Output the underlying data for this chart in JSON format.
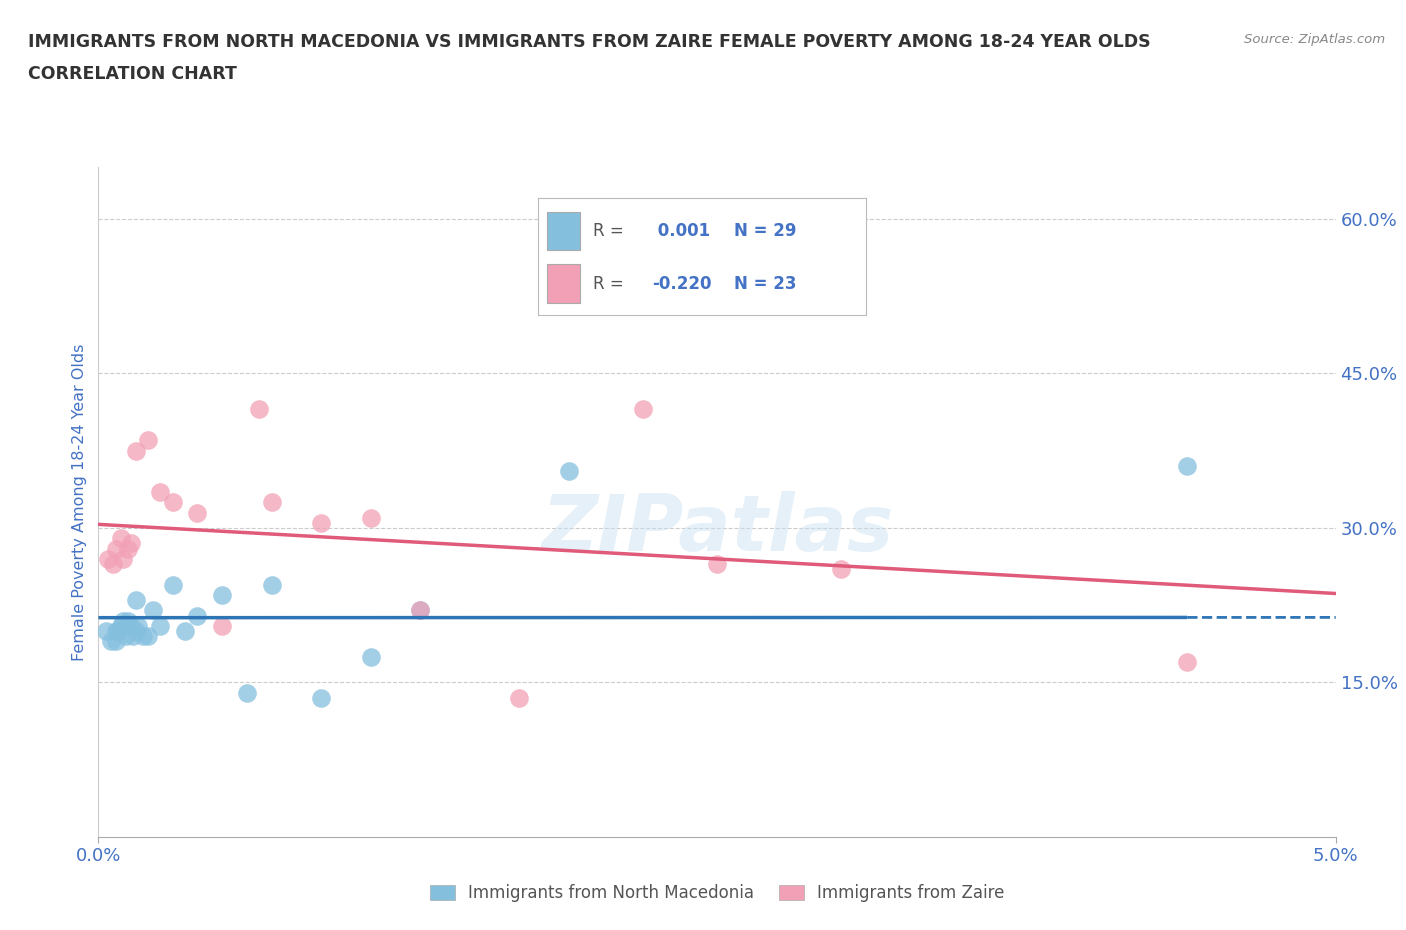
{
  "title_line1": "IMMIGRANTS FROM NORTH MACEDONIA VS IMMIGRANTS FROM ZAIRE FEMALE POVERTY AMONG 18-24 YEAR OLDS",
  "title_line2": "CORRELATION CHART",
  "source": "Source: ZipAtlas.com",
  "ylabel": "Female Poverty Among 18-24 Year Olds",
  "xlim": [
    0.0,
    0.05
  ],
  "ylim": [
    0.0,
    0.65
  ],
  "yticks": [
    0.15,
    0.3,
    0.45,
    0.6
  ],
  "ytick_labels": [
    "15.0%",
    "30.0%",
    "45.0%",
    "60.0%"
  ],
  "xtick_labels": [
    "0.0%",
    "5.0%"
  ],
  "color_blue": "#85bfde",
  "color_pink": "#f2a0b5",
  "color_blue_line": "#2e75b6",
  "color_pink_line": "#e05a7a",
  "color_label": "#4472c4",
  "legend_R1": " 0.001",
  "legend_N1": "29",
  "legend_R2": "-0.220",
  "legend_N2": "23",
  "watermark": "ZIPatlas",
  "nm_x": [
    0.0003,
    0.0005,
    0.0007,
    0.0007,
    0.0008,
    0.0009,
    0.001,
    0.0011,
    0.0012,
    0.0013,
    0.0014,
    0.0015,
    0.0015,
    0.0016,
    0.0018,
    0.002,
    0.0022,
    0.0025,
    0.003,
    0.0035,
    0.004,
    0.005,
    0.006,
    0.007,
    0.009,
    0.011,
    0.013,
    0.019,
    0.044
  ],
  "nm_y": [
    0.2,
    0.19,
    0.2,
    0.19,
    0.2,
    0.205,
    0.21,
    0.195,
    0.21,
    0.205,
    0.195,
    0.2,
    0.23,
    0.205,
    0.195,
    0.195,
    0.22,
    0.205,
    0.245,
    0.2,
    0.215,
    0.235,
    0.14,
    0.245,
    0.135,
    0.175,
    0.22,
    0.355,
    0.36
  ],
  "zaire_x": [
    0.0004,
    0.0006,
    0.0007,
    0.0009,
    0.001,
    0.0012,
    0.0013,
    0.0015,
    0.002,
    0.0025,
    0.003,
    0.004,
    0.005,
    0.0065,
    0.007,
    0.009,
    0.011,
    0.013,
    0.017,
    0.022,
    0.025,
    0.03,
    0.044
  ],
  "zaire_y": [
    0.27,
    0.265,
    0.28,
    0.29,
    0.27,
    0.28,
    0.285,
    0.375,
    0.385,
    0.335,
    0.325,
    0.315,
    0.205,
    0.415,
    0.325,
    0.305,
    0.31,
    0.22,
    0.135,
    0.415,
    0.265,
    0.26,
    0.17
  ]
}
